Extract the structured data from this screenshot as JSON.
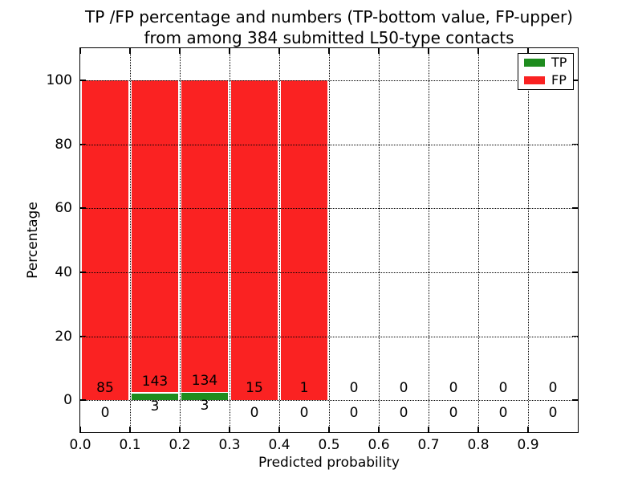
{
  "figure": {
    "background": "#ffffff",
    "title_line1": "TP /FP percentage and numbers (TP-bottom value, FP-upper)",
    "title_line2": "from among 384 submitted L50-type contacts"
  },
  "chart_data": {
    "type": "bar",
    "subtype": "stacked-percentage-histogram",
    "title": "TP /FP percentage and numbers (TP-bottom value, FP-upper) from among 384 submitted L50-type contacts",
    "xlabel": "Predicted probability",
    "ylabel": "Percentage",
    "total_contacts": 384,
    "bin_width": 0.1,
    "bin_starts": [
      0.0,
      0.1,
      0.2,
      0.3,
      0.4,
      0.5,
      0.6,
      0.7,
      0.8,
      0.9
    ],
    "series": [
      {
        "name": "TP",
        "color": "#1e8c1e",
        "counts": [
          0,
          3,
          3,
          0,
          0,
          0,
          0,
          0,
          0,
          0
        ]
      },
      {
        "name": "FP",
        "color": "#fa2222",
        "counts": [
          85,
          143,
          134,
          15,
          1,
          0,
          0,
          0,
          0,
          0
        ]
      }
    ],
    "stacked_percentages": {
      "TP": [
        0,
        2.05,
        2.19,
        0,
        0,
        0,
        0,
        0,
        0,
        0
      ],
      "FP": [
        100,
        97.95,
        97.81,
        100,
        100,
        0,
        0,
        0,
        0,
        0
      ]
    },
    "xticks": [
      "0.0",
      "0.1",
      "0.2",
      "0.3",
      "0.4",
      "0.5",
      "0.6",
      "0.7",
      "0.8",
      "0.9"
    ],
    "yticks": [
      "0",
      "20",
      "40",
      "60",
      "80",
      "100"
    ],
    "ytick_values": [
      0,
      20,
      40,
      60,
      80,
      100
    ],
    "xlim": [
      0.0,
      1.0
    ],
    "ylim": [
      -10,
      110
    ],
    "grid": "dotted",
    "grid_on": true,
    "legend_position": "upper right",
    "legend": [
      {
        "label": "TP",
        "color": "#1e8c1e"
      },
      {
        "label": "FP",
        "color": "#fa2222"
      }
    ]
  }
}
